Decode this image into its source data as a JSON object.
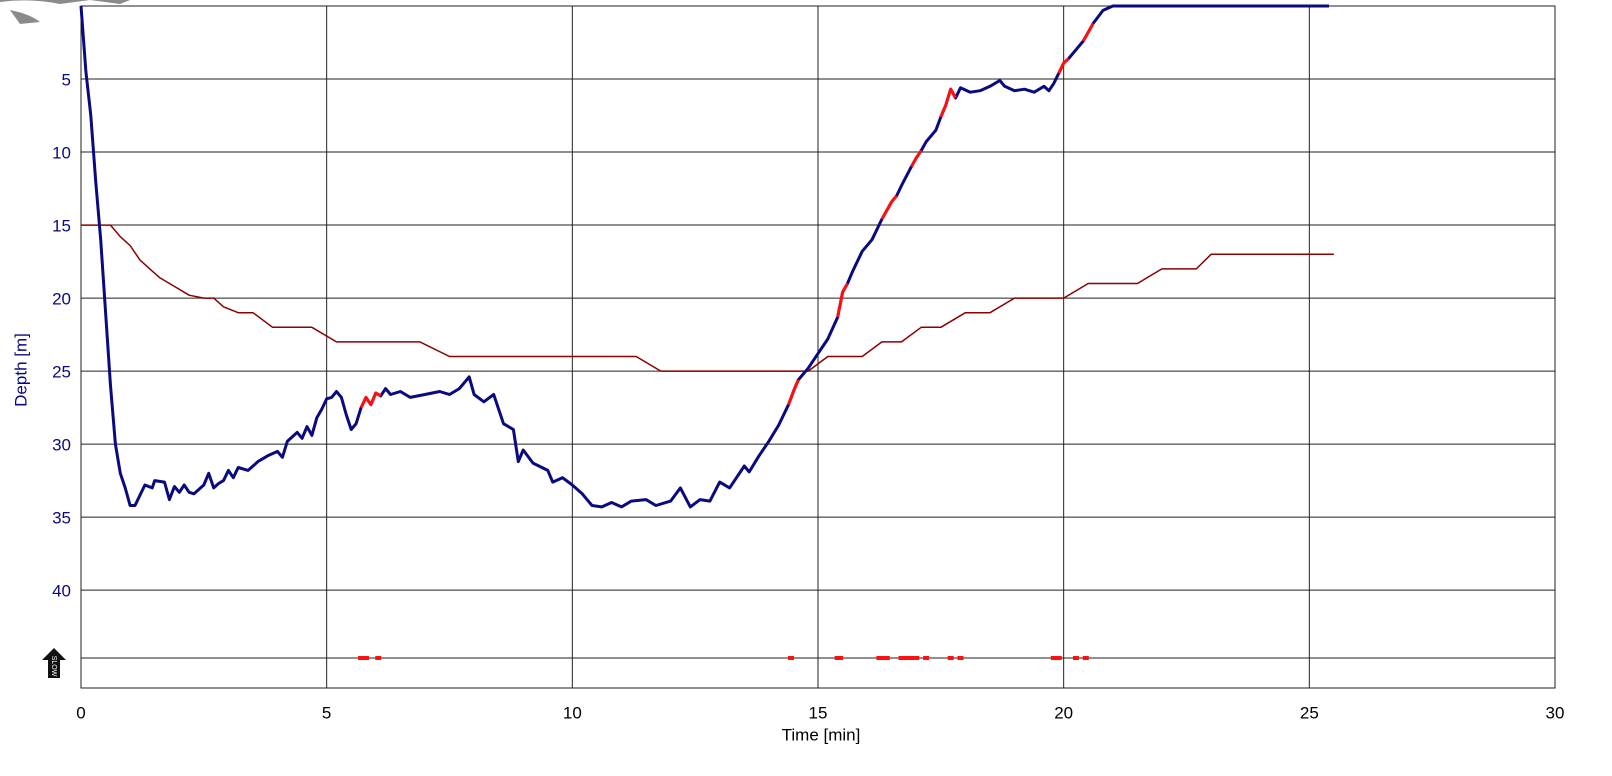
{
  "chart_data": {
    "type": "line",
    "xlabel": "Time [min]",
    "ylabel": "Depth [m]",
    "xlim": [
      0,
      30
    ],
    "ylim": [
      0,
      46.7
    ],
    "y_inverted": true,
    "grid": true,
    "xticks": [
      0,
      5,
      10,
      15,
      20,
      25,
      30
    ],
    "yticks": [
      5,
      10,
      15,
      20,
      25,
      30,
      35,
      40
    ],
    "x": [
      0,
      0.1,
      0.2,
      0.3,
      0.4,
      0.5,
      0.6,
      0.7,
      0.8,
      0.9,
      1.0,
      1.1,
      1.3,
      1.45,
      1.5,
      1.7,
      1.8,
      1.9,
      2.0,
      2.1,
      2.2,
      2.3,
      2.5,
      2.6,
      2.7,
      2.8,
      2.9,
      3.0,
      3.1,
      3.2,
      3.4,
      3.6,
      3.8,
      4.0,
      4.1,
      4.2,
      4.4,
      4.5,
      4.6,
      4.7,
      4.8,
      4.9,
      5.0,
      5.1,
      5.2,
      5.3,
      5.4,
      5.5,
      5.6,
      5.7,
      5.8,
      5.9,
      6.0,
      6.1,
      6.2,
      6.3,
      6.5,
      6.7,
      7.0,
      7.3,
      7.5,
      7.7,
      7.9,
      8.0,
      8.2,
      8.4,
      8.6,
      8.8,
      8.9,
      9.0,
      9.2,
      9.5,
      9.6,
      9.8,
      10.0,
      10.2,
      10.4,
      10.6,
      10.8,
      11.0,
      11.2,
      11.5,
      11.7,
      12.0,
      12.2,
      12.4,
      12.6,
      12.8,
      13.0,
      13.2,
      13.5,
      13.6,
      13.8,
      14.0,
      14.2,
      14.4,
      14.5,
      14.6,
      14.8,
      15.0,
      15.2,
      15.4,
      15.5,
      15.6,
      15.7,
      15.9,
      16.1,
      16.3,
      16.5,
      16.6,
      16.7,
      16.9,
      17.0,
      17.1,
      17.2,
      17.4,
      17.5,
      17.6,
      17.7,
      17.8,
      17.9,
      18.1,
      18.3,
      18.5,
      18.7,
      18.8,
      19.0,
      19.2,
      19.4,
      19.6,
      19.7,
      19.8,
      19.9,
      20.0,
      20.1,
      20.2,
      20.4,
      20.5,
      20.6,
      20.8,
      21.0,
      25.4
    ],
    "series": [
      {
        "color": "#0a0a80",
        "width": 3,
        "values": [
          0,
          4.5,
          7.5,
          12,
          16,
          21,
          26,
          30,
          32,
          33,
          34.2,
          34.2,
          32.8,
          33,
          32.5,
          32.6,
          33.8,
          32.9,
          33.3,
          32.8,
          33.3,
          33.4,
          32.8,
          32,
          33,
          32.7,
          32.5,
          31.8,
          32.3,
          31.6,
          31.8,
          31.2,
          30.8,
          30.5,
          30.9,
          29.8,
          29.2,
          29.6,
          28.8,
          29.4,
          28.2,
          27.6,
          26.9,
          26.8,
          26.4,
          26.8,
          28,
          29,
          28.6,
          27.5,
          26.8,
          27.3,
          26.5,
          26.7,
          26.2,
          26.6,
          26.4,
          26.8,
          26.6,
          26.4,
          26.6,
          26.2,
          25.4,
          26.6,
          27.1,
          26.6,
          28.6,
          29,
          31.2,
          30.4,
          31.3,
          31.8,
          32.6,
          32.3,
          32.8,
          33.4,
          34.2,
          34.3,
          34,
          34.3,
          33.9,
          33.8,
          34.2,
          33.9,
          33,
          34.3,
          33.8,
          33.9,
          32.6,
          33,
          31.5,
          31.9,
          30.8,
          29.8,
          28.7,
          27.3,
          26.4,
          25.6,
          24.8,
          23.8,
          22.8,
          21.3,
          19.6,
          19.0,
          18.2,
          16.8,
          16,
          14.6,
          13.4,
          13.0,
          12.3,
          11.0,
          10.4,
          9.9,
          9.3,
          8.5,
          7.6,
          6.8,
          5.7,
          6.3,
          5.6,
          5.9,
          5.8,
          5.5,
          5.1,
          5.5,
          5.8,
          5.7,
          5.9,
          5.5,
          5.8,
          5.3,
          4.6,
          3.9,
          3.6,
          3.2,
          2.4,
          1.8,
          1.2,
          0.3,
          0,
          0
        ]
      },
      {
        "color": "#ff1010",
        "width": 3,
        "values": [
          null,
          null,
          null,
          null,
          null,
          null,
          null,
          null,
          null,
          null,
          null,
          null,
          null,
          null,
          null,
          null,
          null,
          null,
          null,
          null,
          null,
          null,
          null,
          null,
          null,
          null,
          null,
          null,
          null,
          null,
          null,
          null,
          null,
          null,
          null,
          null,
          null,
          null,
          null,
          null,
          null,
          null,
          null,
          null,
          null,
          null,
          null,
          null,
          null,
          27.5,
          26.8,
          27.3,
          26.5,
          26.7,
          null,
          null,
          null,
          null,
          null,
          null,
          null,
          null,
          null,
          null,
          null,
          null,
          null,
          null,
          null,
          null,
          null,
          null,
          null,
          null,
          null,
          null,
          null,
          null,
          null,
          null,
          null,
          null,
          null,
          null,
          null,
          null,
          null,
          null,
          null,
          null,
          null,
          null,
          null,
          null,
          null,
          27.3,
          26.4,
          25.6,
          null,
          null,
          null,
          21.3,
          19.6,
          19.0,
          null,
          null,
          null,
          14.6,
          13.4,
          13.0,
          null,
          11.0,
          10.4,
          9.9,
          null,
          null,
          7.6,
          6.8,
          5.7,
          6.3,
          null,
          null,
          null,
          null,
          null,
          null,
          null,
          null,
          null,
          null,
          null,
          null,
          4.6,
          3.9,
          3.6,
          null,
          2.4,
          1.8,
          1.2,
          null,
          null,
          null
        ]
      },
      {
        "color": "#8b0000",
        "width": 1.5,
        "x": [
          0,
          0.6,
          0.8,
          1.0,
          1.2,
          1.4,
          1.6,
          1.9,
          2.2,
          2.5,
          2.7,
          2.9,
          3.2,
          3.5,
          3.9,
          4.7,
          5.2,
          6.9,
          7.5,
          11.3,
          11.8,
          14.8,
          15.2,
          15.9,
          16.3,
          16.7,
          17.1,
          17.5,
          18.0,
          18.5,
          19.0,
          20.0,
          20.5,
          21.5,
          22.0,
          22.7,
          23.0,
          25.5
        ],
        "values": [
          15,
          15,
          15.8,
          16.4,
          17.4,
          18,
          18.6,
          19.2,
          19.8,
          20,
          20,
          20.6,
          21,
          21,
          22,
          22,
          23,
          23,
          24,
          24,
          25,
          25,
          24,
          24,
          23,
          23,
          22,
          22,
          21,
          21,
          20,
          20,
          19,
          19,
          18,
          18,
          17,
          17
        ]
      }
    ],
    "slow_events": [
      5.7,
      5.75,
      5.8,
      6.05,
      14.45,
      15.4,
      15.45,
      16.25,
      16.3,
      16.4,
      16.7,
      16.8,
      16.9,
      17.0,
      17.2,
      17.7,
      17.9,
      19.8,
      19.85,
      19.9,
      20.25,
      20.45
    ],
    "slow_icon_label": "SLOW"
  }
}
